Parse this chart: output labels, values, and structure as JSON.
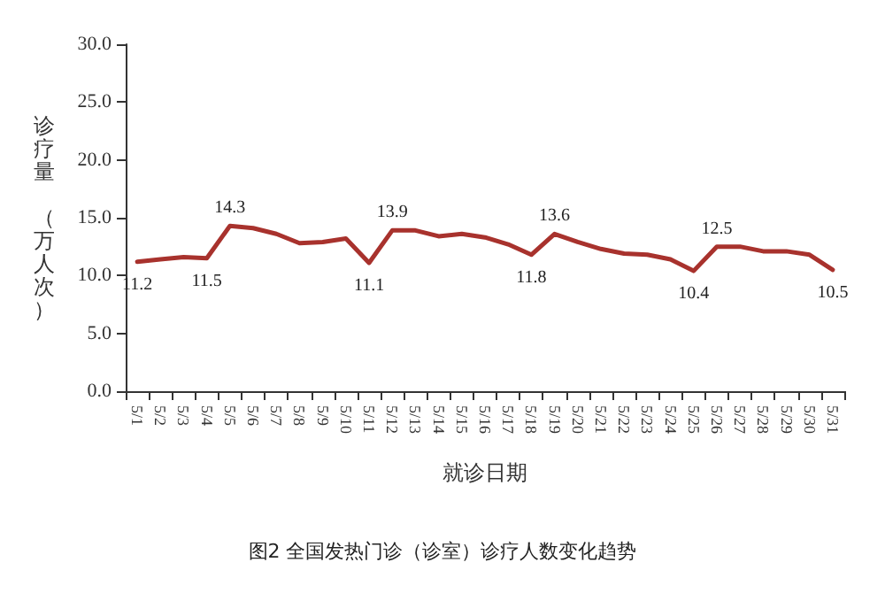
{
  "chart_data": {
    "type": "line",
    "xlabel": "就诊日期",
    "ylabel": "诊疗量（万人次）",
    "annotations": [
      "图2 全国发热门诊（诊室）诊疗人数变化趋势"
    ],
    "categories": [
      "5/1",
      "5/2",
      "5/3",
      "5/4",
      "5/5",
      "5/6",
      "5/7",
      "5/8",
      "5/9",
      "5/10",
      "5/11",
      "5/12",
      "5/13",
      "5/14",
      "5/15",
      "5/16",
      "5/17",
      "5/18",
      "5/19",
      "5/20",
      "5/21",
      "5/22",
      "5/23",
      "5/24",
      "5/25",
      "5/26",
      "5/27",
      "5/28",
      "5/29",
      "5/30",
      "5/31"
    ],
    "series": [
      {
        "color": "#a8322d",
        "values": [
          11.2,
          11.4,
          11.6,
          11.5,
          14.3,
          14.1,
          13.6,
          12.8,
          12.9,
          13.2,
          11.1,
          13.9,
          13.9,
          13.4,
          13.6,
          13.3,
          12.7,
          11.8,
          13.6,
          12.9,
          12.3,
          11.9,
          11.8,
          11.4,
          10.4,
          12.5,
          12.5,
          12.1,
          12.1,
          11.8,
          10.5
        ],
        "value_labels": [
          "11.2",
          null,
          null,
          "11.5",
          "14.3",
          null,
          null,
          null,
          null,
          null,
          "11.1",
          "13.9",
          null,
          null,
          null,
          null,
          null,
          "11.8",
          "13.6",
          null,
          null,
          null,
          null,
          null,
          "10.4",
          "12.5",
          null,
          null,
          null,
          null,
          "10.5"
        ]
      }
    ],
    "ylim": [
      0,
      30
    ],
    "yticks": [
      {
        "value": 0,
        "label": "0.0"
      },
      {
        "value": 5,
        "label": "5.0"
      },
      {
        "value": 10,
        "label": "10.0"
      },
      {
        "value": 15,
        "label": "15.0"
      },
      {
        "value": 20,
        "label": "20.0"
      },
      {
        "value": 25,
        "label": "25.0"
      },
      {
        "value": 30,
        "label": "30.0"
      }
    ],
    "grid": false,
    "marker": "none",
    "line_style": "solid"
  }
}
